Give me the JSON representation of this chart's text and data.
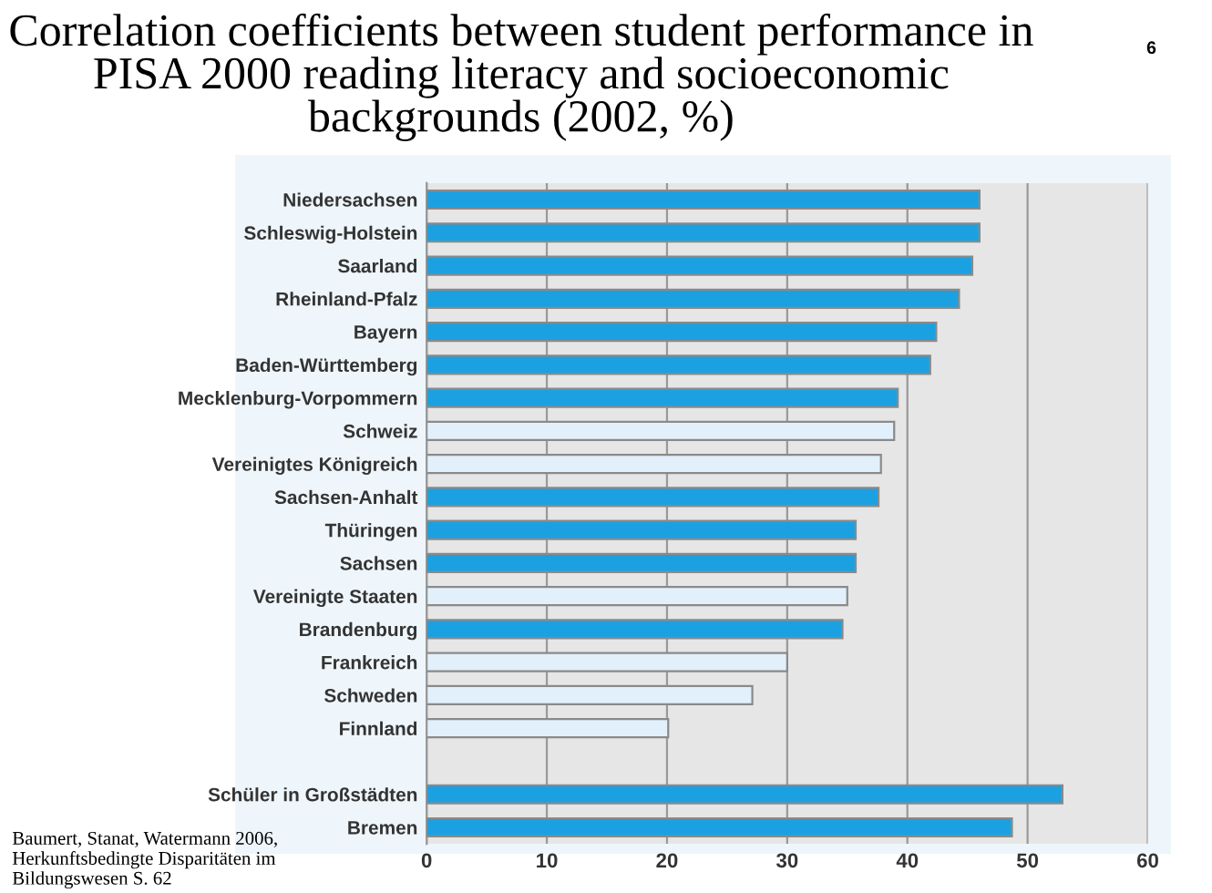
{
  "chart_data": {
    "type": "bar",
    "orientation": "horizontal",
    "title": "Correlation coefficients between student performance in PISA 2000 reading literacy and socioeconomic backgrounds (2002, %)",
    "categories": [
      "Niedersachsen",
      "Schleswig-Holstein",
      "Saarland",
      "Rheinland-Pfalz",
      "Bayern",
      "Baden-Württemberg",
      "Mecklenburg-Vorpommern",
      "Schweiz",
      "Vereinigtes Königreich",
      "Sachsen-Anhalt",
      "Thüringen",
      "Sachsen",
      "Vereinigte Staaten",
      "Brandenburg",
      "Frankreich",
      "Schweden",
      "Finnland",
      null,
      "Schüler in Großstädten",
      "Bremen"
    ],
    "values": [
      46.0,
      46.0,
      45.4,
      44.3,
      42.4,
      41.9,
      39.2,
      38.9,
      37.8,
      37.6,
      35.7,
      35.7,
      35.0,
      34.6,
      30.0,
      27.1,
      20.1,
      null,
      52.9,
      48.7
    ],
    "colors": [
      "#1ba1e2",
      "#1ba1e2",
      "#1ba1e2",
      "#1ba1e2",
      "#1ba1e2",
      "#1ba1e2",
      "#1ba1e2",
      "#e2f0fb",
      "#e2f0fb",
      "#1ba1e2",
      "#1ba1e2",
      "#1ba1e2",
      "#e2f0fb",
      "#1ba1e2",
      "#e2f0fb",
      "#e2f0fb",
      "#e2f0fb",
      "#e2f0fb",
      "#1ba1e2",
      "#1ba1e2"
    ],
    "xlim": [
      0,
      60
    ],
    "xticks": [
      0,
      10,
      20,
      30,
      40,
      50,
      60
    ],
    "grid": "x",
    "annotations": [
      "6",
      "Baumert, Stanat, Watermann 2006, Herkunftsbedingte Disparitäten im Bildungswesen S. 62"
    ]
  }
}
